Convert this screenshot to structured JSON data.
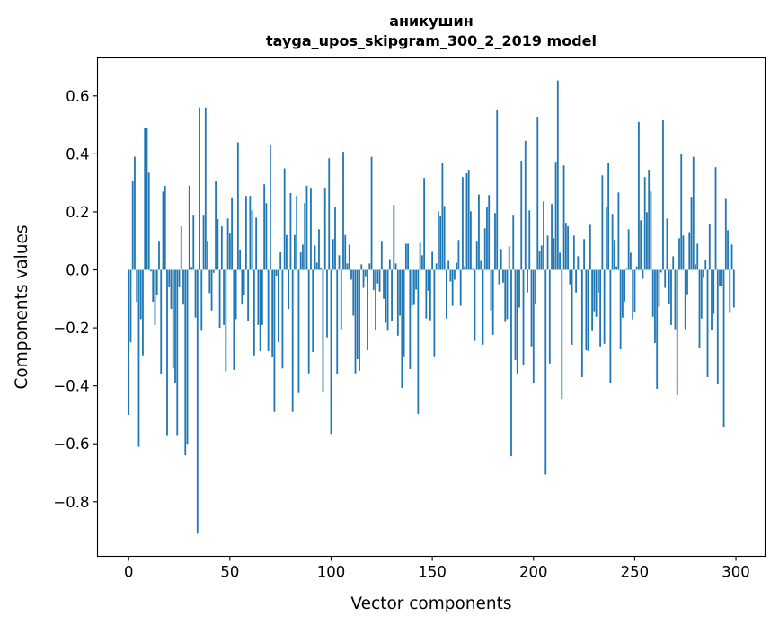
{
  "chart_data": {
    "type": "bar",
    "title": [
      "аникушин",
      "tayga_upos_skipgram_300_2_2019 model"
    ],
    "xlabel": "Vector components",
    "ylabel": "Components values",
    "xlim": [
      -15.4,
      314.4
    ],
    "ylim": [
      -0.988,
      0.731
    ],
    "xticks": [
      0,
      50,
      100,
      150,
      200,
      250,
      300
    ],
    "yticks": [
      -0.8,
      -0.6,
      -0.4,
      -0.2,
      0.0,
      0.2,
      0.4,
      0.6
    ],
    "ytick_labels": [
      "−0.8",
      "−0.6",
      "−0.4",
      "−0.2",
      "0.0",
      "0.2",
      "0.4",
      "0.6"
    ],
    "grid": false,
    "color": "#1f77b4",
    "values": [
      -0.5,
      -0.25,
      0.305,
      0.39,
      -0.11,
      -0.61,
      -0.17,
      -0.295,
      0.49,
      0.49,
      0.335,
      -0.005,
      -0.11,
      -0.19,
      -0.085,
      0.1,
      -0.36,
      0.27,
      0.29,
      -0.57,
      -0.06,
      -0.135,
      -0.34,
      -0.39,
      -0.57,
      -0.06,
      0.15,
      -0.12,
      -0.64,
      -0.6,
      0.29,
      0.01,
      0.19,
      -0.165,
      -0.91,
      0.56,
      -0.21,
      0.19,
      0.56,
      0.1,
      -0.08,
      -0.14,
      -0.01,
      0.305,
      0.175,
      -0.2,
      0.15,
      -0.19,
      -0.35,
      0.177,
      0.125,
      0.25,
      -0.345,
      -0.17,
      0.44,
      0.07,
      -0.12,
      -0.087,
      0.255,
      -0.175,
      0.255,
      0.205,
      -0.295,
      0.18,
      -0.19,
      -0.28,
      -0.19,
      0.295,
      0.23,
      -0.28,
      0.43,
      -0.3,
      -0.49,
      -0.02,
      -0.25,
      0.06,
      -0.34,
      0.35,
      0.12,
      -0.135,
      0.265,
      -0.49,
      0.12,
      0.255,
      -0.425,
      0.06,
      0.087,
      0.23,
      0.29,
      -0.357,
      0.283,
      -0.283,
      0.084,
      0.025,
      0.14,
      0.006,
      -0.423,
      0.283,
      -0.233,
      0.385,
      -0.566,
      0.106,
      0.215,
      -0.36,
      0.05,
      -0.205,
      0.407,
      0.12,
      0.022,
      0.087,
      -0.034,
      -0.158,
      -0.357,
      -0.308,
      -0.348,
      0.019,
      -0.062,
      -0.022,
      -0.277,
      0.022,
      0.39,
      -0.07,
      -0.208,
      -0.047,
      -0.075,
      0.1,
      -0.1,
      -0.183,
      -0.21,
      0.037,
      -0.177,
      0.224,
      0.022,
      -0.227,
      -0.158,
      -0.407,
      -0.298,
      0.09,
      0.09,
      -0.342,
      -0.124,
      -0.121,
      -0.068,
      -0.497,
      0.093,
      0.05,
      0.317,
      -0.168,
      -0.072,
      -0.174,
      0.062,
      -0.298,
      0.022,
      0.202,
      0.187,
      0.37,
      0.22,
      -0.168,
      0.031,
      -0.04,
      -0.124,
      -0.034,
      0.025,
      0.103,
      -0.124,
      0.32,
      0.012,
      0.333,
      0.345,
      0.202,
      0.003,
      -0.245,
      0.1,
      0.26,
      0.031,
      -0.258,
      0.143,
      0.215,
      0.258,
      -0.14,
      -0.224,
      0.196,
      0.55,
      -0.05,
      0.072,
      -0.044,
      -0.18,
      -0.17,
      0.081,
      -0.643,
      0.19,
      -0.311,
      -0.357,
      -0.13,
      0.376,
      -0.33,
      0.445,
      -0.078,
      0.205,
      -0.264,
      -0.392,
      -0.118,
      0.528,
      0.065,
      0.084,
      0.236,
      -0.706,
      0.118,
      -0.323,
      0.227,
      0.109,
      0.373,
      0.653,
      0.059,
      -0.445,
      0.36,
      0.162,
      0.15,
      -0.05,
      -0.258,
      0.118,
      -0.078,
      0.047,
      -0.003,
      -0.37,
      0.106,
      -0.277,
      -0.28,
      0.155,
      -0.211,
      -0.143,
      -0.162,
      -0.078,
      -0.264,
      0.326,
      -0.255,
      0.218,
      0.37,
      -0.389,
      0.193,
      0.103,
      0.012,
      0.267,
      -0.274,
      -0.165,
      -0.109,
      0.003,
      0.14,
      0.059,
      -0.171,
      -0.146,
      0.012,
      0.51,
      0.171,
      -0.031,
      0.32,
      0.199,
      0.345,
      0.27,
      -0.162,
      -0.252,
      -0.41,
      -0.127,
      -0.009,
      0.516,
      -0.062,
      0.177,
      -0.118,
      -0.19,
      0.047,
      -0.205,
      -0.432,
      0.109,
      0.4,
      0.118,
      -0.205,
      -0.084,
      0.13,
      0.252,
      0.39,
      0.019,
      0.09,
      -0.27,
      -0.168,
      -0.028,
      0.034,
      -0.37,
      0.158,
      -0.208,
      -0.152,
      0.354,
      -0.395,
      -0.056,
      -0.056,
      -0.544,
      0.245,
      0.137,
      -0.149,
      0.087,
      -0.13
    ]
  }
}
